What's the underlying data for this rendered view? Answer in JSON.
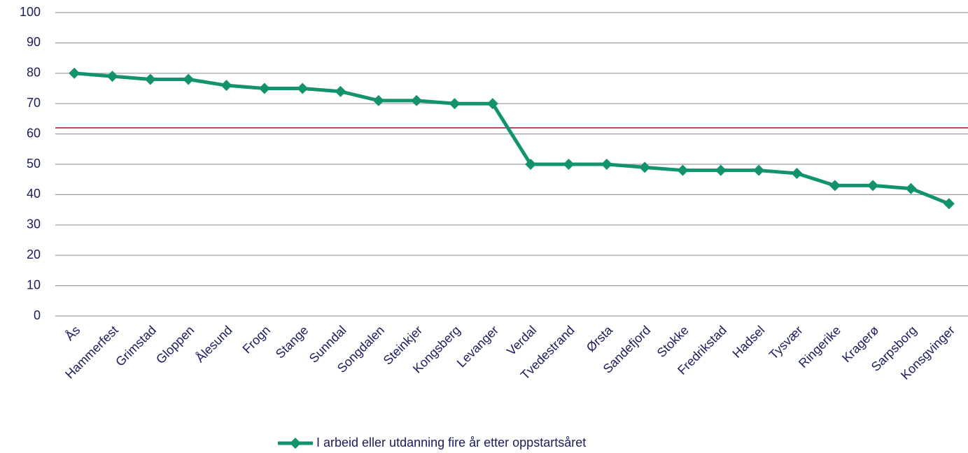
{
  "chart_data": {
    "type": "line",
    "categories": [
      "Ås",
      "Hammerfest",
      "Grimstad",
      "Gloppen",
      "Ålesund",
      "Frogn",
      "Stange",
      "Sunndal",
      "Songdalen",
      "Steinkjer",
      "Kongsberg",
      "Levanger",
      "Verdal",
      "Tvedestrand",
      "Ørsta",
      "Sandefjord",
      "Stokke",
      "Fredrikstad",
      "Hadsel",
      "Tysvær",
      "Ringerike",
      "Kragerø",
      "Sarpsborg",
      "Konsgvinger"
    ],
    "series": [
      {
        "name": "I arbeid eller utdanning fire år etter oppstartsåret",
        "color": "#13936d",
        "values": [
          80,
          79,
          78,
          78,
          76,
          75,
          75,
          74,
          71,
          71,
          70,
          70,
          50,
          50,
          50,
          49,
          48,
          48,
          48,
          47,
          43,
          43,
          42,
          37
        ]
      }
    ],
    "reference_line": {
      "value": 62,
      "color": "#a31621"
    },
    "ylim": [
      0,
      100
    ],
    "yticks": [
      0,
      10,
      20,
      30,
      40,
      50,
      60,
      70,
      80,
      90,
      100
    ],
    "grid": true,
    "legend": "bottom"
  }
}
